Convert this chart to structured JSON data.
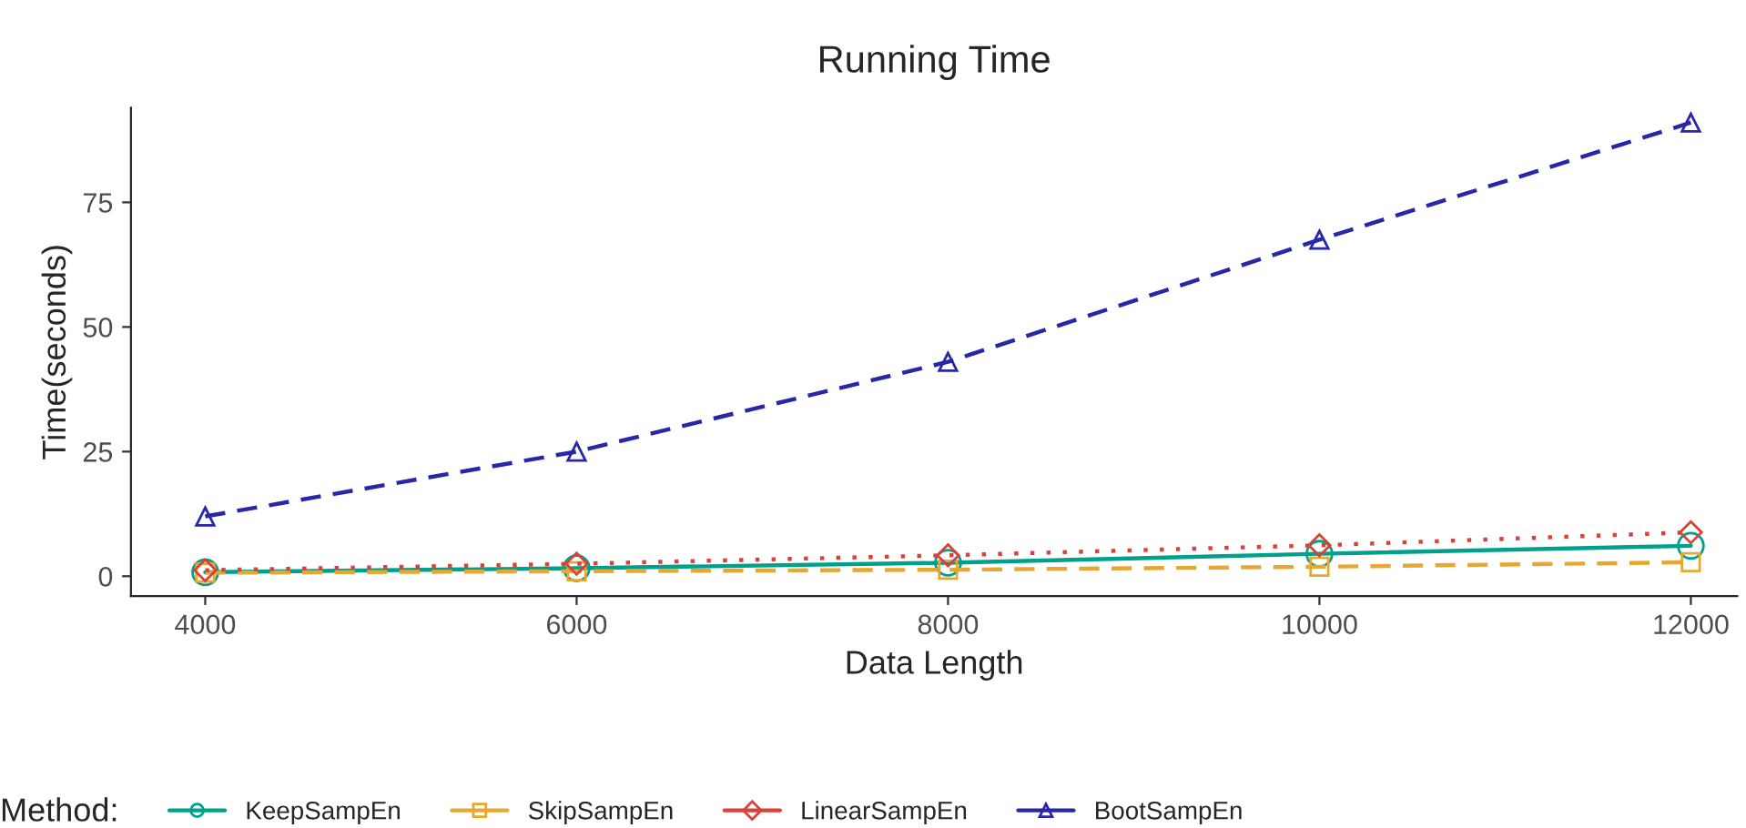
{
  "chart_data": {
    "type": "line",
    "title": "Running Time",
    "xlabel": "Data Length",
    "ylabel": "Time(seconds)",
    "legend_title": "Method:",
    "x": [
      4000,
      6000,
      8000,
      10000,
      12000
    ],
    "xlim": [
      3600,
      12250
    ],
    "xticks": [
      4000,
      6000,
      8000,
      10000,
      12000
    ],
    "ylim": [
      -4,
      94
    ],
    "yticks": [
      0,
      25,
      50,
      75
    ],
    "grid": false,
    "legend": "bottom",
    "series": [
      {
        "name": "KeepSampEn",
        "color": "#00a08a",
        "values": [
          0.8,
          1.6,
          2.7,
          4.5,
          6.1
        ],
        "marker": "circle",
        "line_style": "solid"
      },
      {
        "name": "SkipSampEn",
        "color": "#e6a833",
        "values": [
          0.7,
          1.0,
          1.3,
          1.9,
          2.8
        ],
        "marker": "square",
        "line_style": "dashed"
      },
      {
        "name": "LinearSampEn",
        "color": "#d9423a",
        "values": [
          1.2,
          2.5,
          4.2,
          6.2,
          8.8
        ],
        "marker": "diamond",
        "line_style": "dotted"
      },
      {
        "name": "BootSampEn",
        "color": "#2727a8",
        "values": [
          12,
          25,
          43,
          67.5,
          91
        ],
        "marker": "triangle",
        "line_style": "dashed"
      }
    ]
  }
}
